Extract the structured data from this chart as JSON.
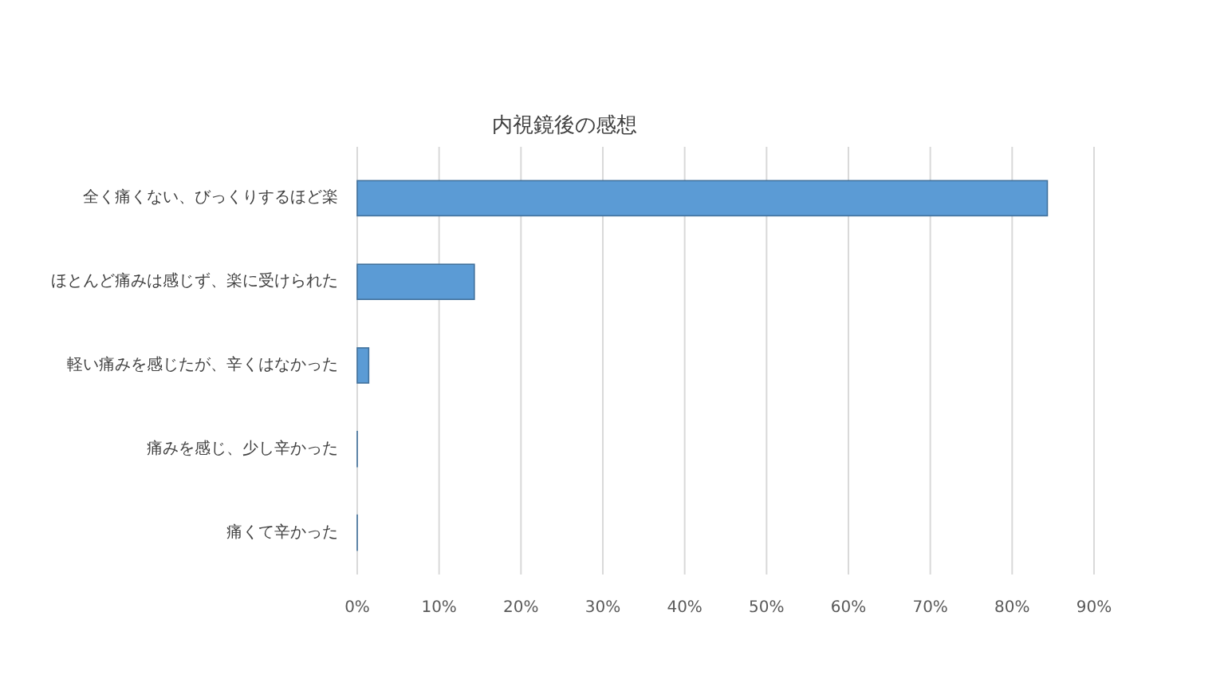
{
  "chart_data": {
    "type": "bar",
    "orientation": "horizontal",
    "title": "内視鏡後の感想",
    "categories": [
      "全く痛くない、びっくりするほど楽",
      "ほとんど痛みは感じず、楽に受けられた",
      "軽い痛みを感じたが、辛くはなかった",
      "痛みを感じ、少し辛かった",
      "痛くて辛かった"
    ],
    "values": [
      84.3,
      14.3,
      1.4,
      0,
      0
    ],
    "color": "#5b9bd5",
    "xlim": [
      0,
      90
    ],
    "xticks": [
      {
        "value": 0,
        "label": "0%"
      },
      {
        "value": 10,
        "label": "10%"
      },
      {
        "value": 20,
        "label": "20%"
      },
      {
        "value": 30,
        "label": "30%"
      },
      {
        "value": 40,
        "label": "40%"
      },
      {
        "value": 50,
        "label": "50%"
      },
      {
        "value": 60,
        "label": "60%"
      },
      {
        "value": 70,
        "label": "70%"
      },
      {
        "value": 80,
        "label": "80%"
      },
      {
        "value": 90,
        "label": "90%"
      }
    ],
    "grid": "x"
  }
}
